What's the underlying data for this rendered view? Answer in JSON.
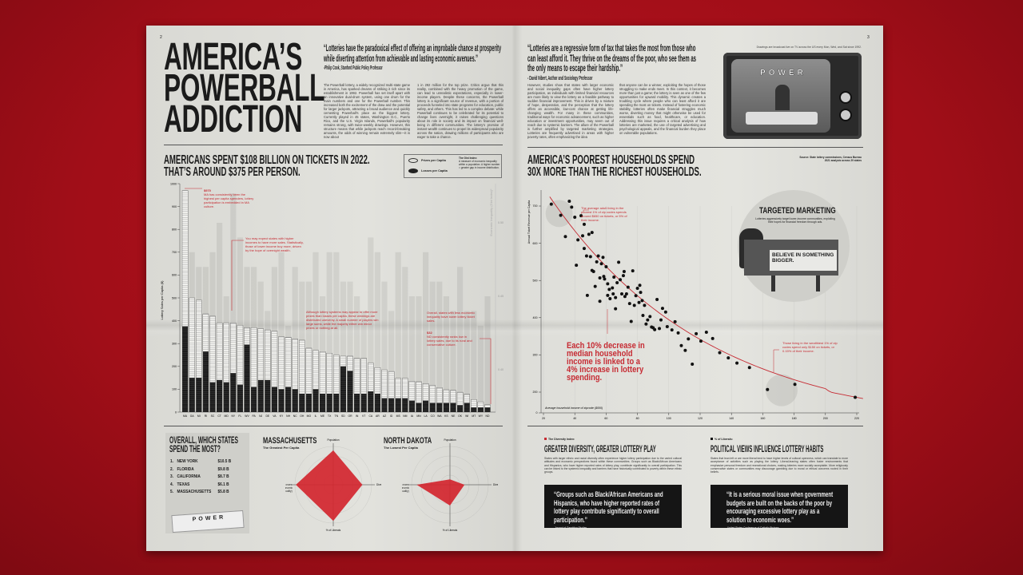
{
  "page_left": {
    "page_number": "2",
    "title_lines": [
      "AMERICA’S",
      "POWERBALL",
      "ADDICTION"
    ],
    "quote": "“Lotteries have the paradoxical effect of offering an improbable chance at prosperity while diverting attention from achievable and lasting economic avenues.”",
    "quote_attribution": "-Philip Cook, Stanford Public Policy Professor",
    "body_col1": "The Powerball lottery, a widely recognized multi-state game in America, has sparked dreams of striking it rich since its establishment in 1992. Powerball has set itself apart with an innovative dual-drum system, using one drum for the main numbers and one for the Powerball number. This increased both the excitement of the draw and the potential for larger jackpots, attracting a broad audience and quickly cementing Powerball's place as the biggest lottery. Currently played in 45 states, Washington D.C., Puerto Rico, and the U.S. Virgin Islands, Powerball's popularity remains strong, with twice-weekly drawings. However, this structure means that while jackpots reach record-breaking amounts, the odds of winning remain extremely slim—it is now about",
    "body_col2": "1 in 292 million for the top prize. Critics argue that this reality, combined with the heavy promotion of the game, can lead to unrealistic expectations, especially in lower-income players. Despite these concerns, the Powerball lottery is a significant source of revenue, with a portion of proceeds funneled into state programs for education, public safety, and others. This has led to a complex debate: while Powerball continues to be celebrated for its potential to change lives overnight, it raises challenging questions about its role in society and its impact on financial well-being in different communities. The lottery's promise of instant wealth continues to propel its widespread popularity across the nation, drawing millions of participants who are eager to take a chance.",
    "section_heading_lines": [
      "AMERICANS SPENT $108 BILLION ON TICKETS IN 2022.",
      "THAT’S AROUND $375 PER PERSON."
    ],
    "legend": {
      "prizes": "Prizes per Capita",
      "losses": "Losses per Capita",
      "gini_title": "The Gini Index:",
      "gini_desc": "A measure of economic inequality within a population. A higher number = greater gap in income distribution."
    },
    "annotations": {
      "ma_value": "$970",
      "ma_text": "MA has consistently been the highest per capita spenders, lottery participation is embedded in MA culture.",
      "income_text": "You may expect states with higher incomes to have more sales. Statistically, those of lower income buy more, driven by the hope of overnight wealth.",
      "prizes_text": "Although lottery systems may appear to offer more prizes than losses per capita, these winnings are distributed unevenly. A small number of players win large sums, while the majority either win minor prizes or nothing at all.",
      "inequality_text": "Overall, states with less economic inequality have lower lottery ticket sales.",
      "nd_value": "$32",
      "nd_text": "ND consistently ranks low in lottery sales, due to its rural and conservative culture."
    },
    "top_states": {
      "title_lines": [
        "OVERALL, WHICH STATES",
        "SPEND THE MOST?"
      ],
      "items": [
        {
          "rank": "1.",
          "state": "NEW YORK",
          "amount": "$10.5 B"
        },
        {
          "rank": "2.",
          "state": "FLORIDA",
          "amount": "$9.8 B"
        },
        {
          "rank": "3.",
          "state": "CALIFORNIA",
          "amount": "$8.7 B"
        },
        {
          "rank": "4.",
          "state": "TEXAS",
          "amount": "$6.1 B"
        },
        {
          "rank": "5.",
          "state": "MASSACHUSETTS",
          "amount": "$5.8 B"
        }
      ],
      "ticket_logo": "POWER"
    },
    "radar_ma": {
      "title": "MASSACHUSETTS",
      "subtitle": "The Greatest Per Capita"
    },
    "radar_nd": {
      "title": "NORTH DAKOTA",
      "subtitle": "The Lowest Per Capita"
    }
  },
  "page_right": {
    "page_number": "3",
    "quote": "“Lotteries are a regressive form of tax that takes the most from those who can least afford it. They thrive on the dreams of the poor, who see them as the only means to escape their hardship.”",
    "quote_attribution": "- David Nibert, Author and Sociology Professor",
    "body_col1": "However, studies show that states with larger economic and social inequality gaps often have higher lottery participation, as individuals with limited financial resources are more likely to view the lottery as a feasible pathway to sudden financial improvement. This is driven by a mixture of hope, desperation, and the perception that the lottery offers an accessible, low-cost chance at getting life-changing wealth. For many in these communities, traditional ways for economic advancement, such as higher education or investment opportunities, may seem out of reach due to systemic barriers. The allure of the Powerball is further amplified by targeted marketing strategies. Lotteries are frequently advertised in areas with higher poverty rates, often emphasizing the idea",
    "body_col2": "that anyone can be a winner, exploiting the hopes of those struggling to make ends meet. In this context, it becomes more than just a game; the lottery is seen as one of the few opportunities for upward mobility. This dynamic creates a troubling cycle where people who can least afford it are spending the most on tickets. Instead of fostering economic stability, lotteries often make financial struggles much worse, diverting money that might otherwise be used for essentials such as food, healthcare, or education. Addressing this issue requires a critical analysis of how lotteries are marketed, the use of targeted advertising and psychological appeals, and the financial burden they place on vulnerable populations.",
    "tv_caption": "Drawings are broadcast live on TV across the US every Mon, Wed, and Sat since 1992.",
    "tv_logo": "POWER",
    "section_heading_lines": [
      "AMERICA’S POOREST HOUSEHOLDS SPEND",
      "30X MORE THAN THE RICHEST HOUSEHOLDS."
    ],
    "source_lines": [
      "Source: State lottery commissions, Census Bureau",
      "2021 analysis across 29 states"
    ],
    "annotations": {
      "poorest": "The average adult living in the poorest 1% of zip codes spends around $650 on tickets, or 5% of their income.",
      "main": "Each 10% decrease in median household income is linked to a 4% increase in lottery spending.",
      "wealthiest": "Those living in the wealthiest 1% of zip codes spend only $150 on tickets, or 0.15% of their income."
    },
    "marketing": {
      "title": "TARGETED MARKETING",
      "text": "Lotteries aggressively target lower-income communities, exploiting their hopes for financial freedom through ads.",
      "billboard_lines": [
        "BELIEVE IN SOMETHING",
        "BIGGER."
      ]
    },
    "diversity": {
      "tag": "The Diversity Index:",
      "heading": "GREATER DIVERSITY, GREATER LOTTERY PLAY",
      "text": "States with larger ethnic and racial diversity often experience higher lottery participation due to the varied cultural attitudes and economic perspectives found within these communities. Groups such as Black/African Americans and Hispanics, who have higher reported rates of lottery play, contribute significantly to overall participation. This can be linked to the systemic inequality and barriers that have historically contributed to poverty within these ethnic groups.",
      "quote": "“Groups such as Black/African Americans and Hispanics, who have higher reported rates of lottery play contribute significantly to overall participation.”",
      "quote_attribution": "-Journal of Gambling Studies"
    },
    "political": {
      "tag": "% of Liberals:",
      "heading": "POLITICAL VIEWS INFLUENCE LOTTERY HABITS",
      "text": "States that lean left or are more liberal tend to have higher levels of cultural openness, which can translate to more acceptance of activities such as playing the lottery. Liberal-leaning states often foster environments that emphasize personal freedom and recreational choices, making lotteries more socially acceptable. More religiously conservative states or communities may discourage gambling due to moral or ethical concerns rooted in their beliefs.",
      "quote": "“It is a serious moral issue when government budgets are built on the backs of the poor by encouraging excessive lottery play as a solution to economic woes.”",
      "quote_attribution": "-United States Conference of Catholic Bishops"
    }
  },
  "colors": {
    "accent": "#c62b33",
    "background": "#a60f19",
    "paper": "#dfdfda",
    "ink": "#1b1b1b"
  },
  "chart_data": [
    {
      "type": "bar",
      "stacked": true,
      "ylabel": "Lottery Sales per Capita ($)",
      "ylim": [
        0,
        1000
      ],
      "yticks": [
        0,
        100,
        200,
        300,
        400,
        500,
        600,
        700,
        800,
        900,
        1000
      ],
      "y2label": "Economic Inequality (Gini Index)*",
      "y2ticks": [
        "0.50",
        "0.45",
        "0.40"
      ],
      "y2lim": [
        0.4,
        0.55
      ],
      "categories": [
        "MA",
        "GA",
        "MI",
        "RI",
        "SC",
        "CT",
        "MD",
        "NY",
        "FL",
        "WV",
        "PA",
        "NJ",
        "DE",
        "VA",
        "KY",
        "NH",
        "NC",
        "OH",
        "MO",
        "IL",
        "ME",
        "TX",
        "TN",
        "SD",
        "OR",
        "IN",
        "VT",
        "CA",
        "AR",
        "AZ",
        "ID",
        "MS",
        "NM",
        "IA",
        "MN",
        "LA",
        "CO",
        "WA",
        "KS",
        "NE",
        "OK",
        "WI",
        "MT",
        "WY",
        "ND"
      ],
      "series": [
        {
          "name": "Losses per Capita",
          "values": [
            375,
            150,
            150,
            265,
            130,
            140,
            130,
            170,
            120,
            295,
            110,
            140,
            140,
            110,
            100,
            110,
            100,
            80,
            80,
            100,
            80,
            80,
            80,
            200,
            180,
            80,
            80,
            90,
            80,
            60,
            60,
            60,
            60,
            50,
            40,
            50,
            40,
            40,
            40,
            40,
            30,
            40,
            20,
            20,
            20
          ]
        },
        {
          "name": "Prizes per Capita",
          "values": [
            595,
            350,
            340,
            165,
            290,
            250,
            260,
            220,
            260,
            75,
            260,
            225,
            220,
            245,
            230,
            218,
            220,
            235,
            200,
            170,
            185,
            178,
            170,
            45,
            65,
            155,
            155,
            125,
            115,
            125,
            118,
            88,
            88,
            85,
            93,
            75,
            77,
            67,
            58,
            55,
            57,
            38,
            35,
            25,
            12
          ]
        },
        {
          "name": "The Gini Index",
          "axis": "right",
          "values": [
            0.47,
            0.48,
            0.47,
            0.47,
            0.48,
            0.5,
            0.45,
            0.52,
            0.49,
            0.47,
            0.47,
            0.46,
            0.44,
            0.47,
            0.48,
            0.43,
            0.47,
            0.46,
            0.46,
            0.48,
            0.45,
            0.48,
            0.48,
            0.46,
            0.46,
            0.45,
            0.44,
            0.49,
            0.48,
            0.46,
            0.44,
            0.48,
            0.47,
            0.45,
            0.45,
            0.48,
            0.46,
            0.46,
            0.45,
            0.44,
            0.47,
            0.44,
            0.44,
            0.43,
            0.45
          ]
        }
      ],
      "grid": true
    },
    {
      "type": "scatter",
      "xlabel": "Average household income of zipcode ($000)",
      "ylabel": "Annual Ticket Revenue per Capita",
      "xlim": [
        20,
        220
      ],
      "xticks": [
        20,
        40,
        60,
        80,
        100,
        120,
        140,
        160,
        180,
        200,
        220
      ],
      "ylim": [
        0,
        700
      ],
      "yticks": [
        0,
        200,
        300,
        400,
        500,
        600,
        700
      ],
      "trendline": "exponential decay",
      "grid": true,
      "points": [
        [
          25,
          705
        ],
        [
          31,
          675
        ],
        [
          34,
          618
        ],
        [
          36.5,
          713
        ],
        [
          38,
          697
        ],
        [
          40,
          670
        ],
        [
          42,
          609
        ],
        [
          44,
          674
        ],
        [
          45,
          620
        ],
        [
          46,
          651
        ],
        [
          41,
          541
        ],
        [
          46,
          586
        ],
        [
          47.5,
          566
        ],
        [
          49,
          624
        ],
        [
          51,
          629
        ],
        [
          50,
          564
        ],
        [
          51,
          527
        ],
        [
          52,
          524
        ],
        [
          53,
          484
        ],
        [
          48,
          460
        ],
        [
          54,
          550
        ],
        [
          55,
          566
        ],
        [
          56,
          507
        ],
        [
          56,
          444
        ],
        [
          57,
          545
        ],
        [
          58,
          562
        ],
        [
          58.5,
          511
        ],
        [
          59,
          504
        ],
        [
          60,
          537
        ],
        [
          61,
          491
        ],
        [
          62,
          476
        ],
        [
          61,
          460
        ],
        [
          62.5,
          451
        ],
        [
          64,
          480
        ],
        [
          64.5,
          464
        ],
        [
          65,
          509
        ],
        [
          66,
          454
        ],
        [
          66,
          424
        ],
        [
          67,
          494
        ],
        [
          68,
          549
        ],
        [
          69,
          502
        ],
        [
          70,
          464
        ],
        [
          71,
          513
        ],
        [
          71.5,
          524
        ],
        [
          72,
          457
        ],
        [
          73,
          464
        ],
        [
          74,
          482
        ],
        [
          75,
          438
        ],
        [
          76,
          390
        ],
        [
          77,
          526
        ],
        [
          78,
          433
        ],
        [
          79,
          459
        ],
        [
          80,
          479
        ],
        [
          81,
          441
        ],
        [
          81.5,
          487
        ],
        [
          82,
          468
        ],
        [
          83,
          446
        ],
        [
          83.5,
          406
        ],
        [
          84.5,
          433
        ],
        [
          85.5,
          383
        ],
        [
          86.5,
          394
        ],
        [
          88,
          403
        ],
        [
          89,
          375
        ],
        [
          90,
          373
        ],
        [
          91,
          368
        ],
        [
          92.5,
          449
        ],
        [
          94,
          371
        ],
        [
          95,
          394
        ],
        [
          96,
          425
        ],
        [
          98,
          415
        ],
        [
          99,
          376
        ],
        [
          102,
          367
        ],
        [
          104,
          389
        ],
        [
          106,
          359
        ],
        [
          108,
          325
        ],
        [
          110.5,
          312
        ],
        [
          112.5,
          343
        ],
        [
          115,
          275
        ],
        [
          117.5,
          357
        ],
        [
          120.5,
          337
        ],
        [
          124,
          361
        ],
        [
          128,
          344
        ],
        [
          132.5,
          306
        ],
        [
          138,
          292
        ],
        [
          143.5,
          278
        ],
        [
          151.5,
          266
        ],
        [
          163,
          207
        ],
        [
          180.5,
          221
        ],
        [
          219,
          150
        ]
      ]
    },
    {
      "type": "radar",
      "title": "MASSACHUSETTS",
      "axes": [
        "Population",
        "Diversity Index",
        "% of Liberals",
        "Gini Index (Economic Inequality)"
      ],
      "values": [
        0.83,
        0.7,
        0.87,
        0.9
      ]
    },
    {
      "type": "radar",
      "title": "NORTH DAKOTA",
      "axes": [
        "Population",
        "Diversity Index",
        "% of Liberals",
        "Gini Index (Economic Inequality)"
      ],
      "values": [
        0.13,
        0.35,
        0.5,
        0.8
      ]
    }
  ]
}
